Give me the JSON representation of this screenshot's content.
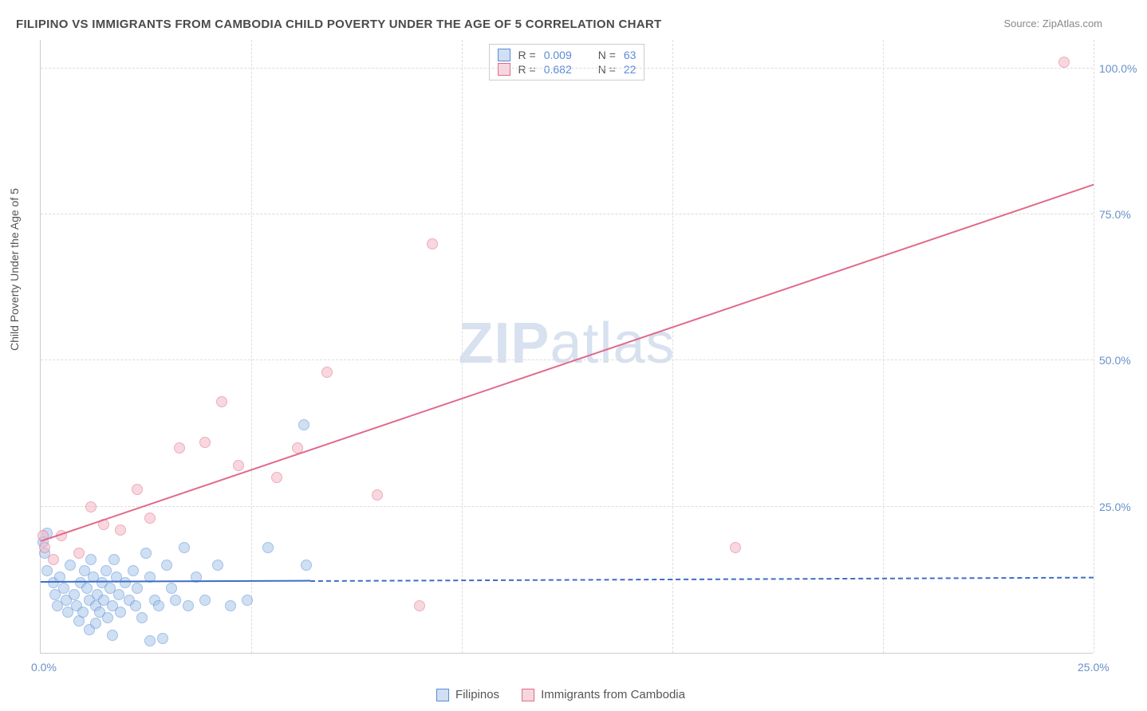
{
  "title": "FILIPINO VS IMMIGRANTS FROM CAMBODIA CHILD POVERTY UNDER THE AGE OF 5 CORRELATION CHART",
  "source": "Source: ZipAtlas.com",
  "y_axis_label": "Child Poverty Under the Age of 5",
  "watermark": {
    "bold": "ZIP",
    "rest": "atlas"
  },
  "chart": {
    "type": "scatter",
    "background_color": "#ffffff",
    "grid_color": "#dddddd",
    "axis_color": "#cccccc",
    "tick_label_color": "#6b8fc7",
    "xlim": [
      0,
      25
    ],
    "ylim": [
      0,
      105
    ],
    "x_ticks": [
      {
        "value": 0,
        "label": "0.0%"
      },
      {
        "value": 25,
        "label": "25.0%"
      }
    ],
    "y_ticks": [
      {
        "value": 25,
        "label": "25.0%"
      },
      {
        "value": 50,
        "label": "50.0%"
      },
      {
        "value": 75,
        "label": "75.0%"
      },
      {
        "value": 100,
        "label": "100.0%"
      }
    ],
    "x_gridlines": [
      5,
      10,
      15,
      20,
      25
    ],
    "y_gridlines": [
      25,
      50,
      75,
      100
    ],
    "series": [
      {
        "name": "Filipinos",
        "fill": "#a9c7eb",
        "stroke": "#5b8ad6",
        "fill_opacity": 0.55,
        "marker_radius": 7,
        "r_value": "0.009",
        "n_value": "63",
        "trend": {
          "x1": 0,
          "y1": 12.0,
          "x2": 6.4,
          "y2": 12.2,
          "color": "#3d6fc4",
          "dashed_after_x": 6.4,
          "dash_to_x": 25,
          "dash_to_y": 12.8
        },
        "points": [
          {
            "x": 0.05,
            "y": 19
          },
          {
            "x": 0.1,
            "y": 17
          },
          {
            "x": 0.15,
            "y": 20.5
          },
          {
            "x": 0.15,
            "y": 14
          },
          {
            "x": 0.3,
            "y": 12
          },
          {
            "x": 0.35,
            "y": 10
          },
          {
            "x": 0.4,
            "y": 8
          },
          {
            "x": 0.45,
            "y": 13
          },
          {
            "x": 0.55,
            "y": 11
          },
          {
            "x": 0.6,
            "y": 9
          },
          {
            "x": 0.65,
            "y": 7
          },
          {
            "x": 0.7,
            "y": 15
          },
          {
            "x": 0.8,
            "y": 10
          },
          {
            "x": 0.85,
            "y": 8
          },
          {
            "x": 0.9,
            "y": 5.5
          },
          {
            "x": 0.95,
            "y": 12
          },
          {
            "x": 1.0,
            "y": 7
          },
          {
            "x": 1.05,
            "y": 14
          },
          {
            "x": 1.1,
            "y": 11
          },
          {
            "x": 1.15,
            "y": 9
          },
          {
            "x": 1.15,
            "y": 4
          },
          {
            "x": 1.2,
            "y": 16
          },
          {
            "x": 1.25,
            "y": 13
          },
          {
            "x": 1.3,
            "y": 8
          },
          {
            "x": 1.3,
            "y": 5
          },
          {
            "x": 1.35,
            "y": 10
          },
          {
            "x": 1.4,
            "y": 7
          },
          {
            "x": 1.45,
            "y": 12
          },
          {
            "x": 1.5,
            "y": 9
          },
          {
            "x": 1.55,
            "y": 14
          },
          {
            "x": 1.6,
            "y": 6
          },
          {
            "x": 1.65,
            "y": 11
          },
          {
            "x": 1.7,
            "y": 8
          },
          {
            "x": 1.7,
            "y": 3
          },
          {
            "x": 1.75,
            "y": 16
          },
          {
            "x": 1.8,
            "y": 13
          },
          {
            "x": 1.85,
            "y": 10
          },
          {
            "x": 1.9,
            "y": 7
          },
          {
            "x": 2.0,
            "y": 12
          },
          {
            "x": 2.1,
            "y": 9
          },
          {
            "x": 2.2,
            "y": 14
          },
          {
            "x": 2.25,
            "y": 8
          },
          {
            "x": 2.3,
            "y": 11
          },
          {
            "x": 2.4,
            "y": 6
          },
          {
            "x": 2.5,
            "y": 17
          },
          {
            "x": 2.6,
            "y": 13
          },
          {
            "x": 2.6,
            "y": 2
          },
          {
            "x": 2.7,
            "y": 9
          },
          {
            "x": 2.8,
            "y": 8
          },
          {
            "x": 2.9,
            "y": 2.5
          },
          {
            "x": 3.0,
            "y": 15
          },
          {
            "x": 3.1,
            "y": 11
          },
          {
            "x": 3.2,
            "y": 9
          },
          {
            "x": 3.4,
            "y": 18
          },
          {
            "x": 3.5,
            "y": 8
          },
          {
            "x": 3.7,
            "y": 13
          },
          {
            "x": 3.9,
            "y": 9
          },
          {
            "x": 4.2,
            "y": 15
          },
          {
            "x": 4.5,
            "y": 8
          },
          {
            "x": 4.9,
            "y": 9
          },
          {
            "x": 5.4,
            "y": 18
          },
          {
            "x": 6.3,
            "y": 15
          },
          {
            "x": 6.25,
            "y": 39
          }
        ]
      },
      {
        "name": "Immigrants from Cambodia",
        "fill": "#f3b8c6",
        "stroke": "#e06b8a",
        "fill_opacity": 0.55,
        "marker_radius": 7,
        "r_value": "0.682",
        "n_value": "22",
        "trend": {
          "x1": 0,
          "y1": 19,
          "x2": 25,
          "y2": 80,
          "color": "#e06b8a"
        },
        "points": [
          {
            "x": 0.05,
            "y": 20
          },
          {
            "x": 0.1,
            "y": 18
          },
          {
            "x": 0.3,
            "y": 16
          },
          {
            "x": 0.5,
            "y": 20
          },
          {
            "x": 0.9,
            "y": 17
          },
          {
            "x": 1.2,
            "y": 25
          },
          {
            "x": 1.5,
            "y": 22
          },
          {
            "x": 1.9,
            "y": 21
          },
          {
            "x": 2.3,
            "y": 28
          },
          {
            "x": 2.6,
            "y": 23
          },
          {
            "x": 3.3,
            "y": 35
          },
          {
            "x": 3.9,
            "y": 36
          },
          {
            "x": 4.3,
            "y": 43
          },
          {
            "x": 4.7,
            "y": 32
          },
          {
            "x": 5.6,
            "y": 30
          },
          {
            "x": 6.1,
            "y": 35
          },
          {
            "x": 6.8,
            "y": 48
          },
          {
            "x": 8.0,
            "y": 27
          },
          {
            "x": 9.3,
            "y": 70
          },
          {
            "x": 9.0,
            "y": 8
          },
          {
            "x": 16.5,
            "y": 18
          },
          {
            "x": 24.3,
            "y": 101
          }
        ]
      }
    ],
    "legend": {
      "swatch_border_blue": "#5b8ad6",
      "swatch_fill_blue": "#cfe0f5",
      "swatch_border_pink": "#e06b8a",
      "swatch_fill_pink": "#f7d6df"
    }
  }
}
